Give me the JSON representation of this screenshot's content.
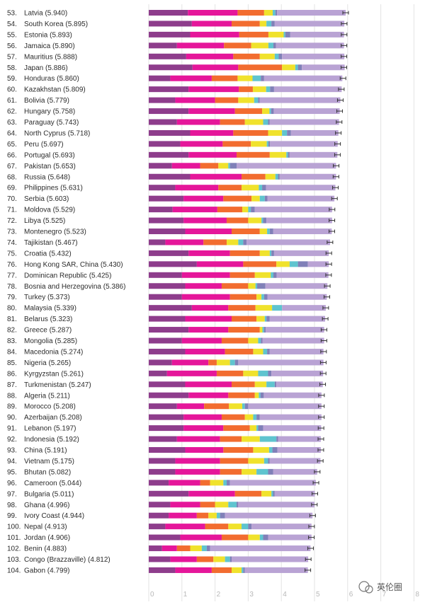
{
  "watermark": "英伦圈",
  "chart_data": {
    "type": "bar",
    "stacked": true,
    "orientation": "horizontal",
    "xlim": [
      0,
      8
    ],
    "x_ticks": [
      0,
      1,
      2,
      3,
      4,
      5,
      6,
      7,
      8
    ],
    "grid": true,
    "error_bars": true,
    "colors": [
      "#8e3d8c",
      "#e5169a",
      "#f26c2f",
      "#f0e22c",
      "#5fc4cf",
      "#8080b8",
      "#b9a3d4"
    ],
    "rows": [
      {
        "rank": "53.",
        "label": "Latvia (5.940)",
        "score": 5.94,
        "segments": [
          1.18,
          1.5,
          0.8,
          0.26,
          0.08,
          0.05,
          2.07
        ]
      },
      {
        "rank": "54.",
        "label": "South Korea (5.895)",
        "score": 5.895,
        "segments": [
          1.3,
          1.2,
          0.85,
          0.2,
          0.15,
          0.1,
          2.1
        ]
      },
      {
        "rank": "55.",
        "label": "Estonia (5.893)",
        "score": 5.893,
        "segments": [
          1.25,
          1.48,
          0.88,
          0.46,
          0.05,
          0.15,
          1.62
        ]
      },
      {
        "rank": "56.",
        "label": "Jamaica (5.890)",
        "score": 5.89,
        "segments": [
          0.85,
          1.42,
          0.82,
          0.52,
          0.15,
          0.08,
          2.05
        ]
      },
      {
        "rank": "57.",
        "label": "Mauritius (5.888)",
        "score": 5.888,
        "segments": [
          1.13,
          1.42,
          0.8,
          0.45,
          0.12,
          0.1,
          1.88
        ]
      },
      {
        "rank": "58.",
        "label": "Japan (5.886)",
        "score": 5.886,
        "segments": [
          1.32,
          1.38,
          1.32,
          0.4,
          0.08,
          0.12,
          1.29
        ]
      },
      {
        "rank": "59.",
        "label": "Honduras (5.860)",
        "score": 5.86,
        "segments": [
          0.65,
          1.25,
          0.78,
          0.45,
          0.25,
          0.1,
          2.36
        ]
      },
      {
        "rank": "60.",
        "label": "Kazakhstan (5.809)",
        "score": 5.809,
        "segments": [
          1.2,
          1.52,
          0.42,
          0.4,
          0.12,
          0.12,
          2.04
        ]
      },
      {
        "rank": "61.",
        "label": "Bolivia (5.779)",
        "score": 5.779,
        "segments": [
          0.8,
          1.2,
          0.7,
          0.48,
          0.12,
          0.05,
          2.43
        ]
      },
      {
        "rank": "62.",
        "label": "Hungary (5.758)",
        "score": 5.758,
        "segments": [
          1.2,
          1.4,
          0.82,
          0.22,
          0.05,
          0.08,
          1.99
        ]
      },
      {
        "rank": "63.",
        "label": "Paraguay (5.743)",
        "score": 5.743,
        "segments": [
          0.85,
          1.3,
          0.75,
          0.55,
          0.15,
          0.05,
          2.09
        ]
      },
      {
        "rank": "64.",
        "label": "North Cyprus (5.718)",
        "score": 5.718,
        "segments": [
          1.25,
          1.3,
          1.05,
          0.42,
          0.15,
          0.12,
          1.43
        ]
      },
      {
        "rank": "65.",
        "label": "Peru (5.697)",
        "score": 5.697,
        "segments": [
          0.95,
          1.28,
          0.85,
          0.48,
          0.05,
          0.05,
          2.04
        ]
      },
      {
        "rank": "66.",
        "label": "Portugal (5.693)",
        "score": 5.693,
        "segments": [
          1.2,
          1.45,
          1.0,
          0.5,
          0.05,
          0.05,
          1.44
        ]
      },
      {
        "rank": "67.",
        "label": "Pakistan (5.653)",
        "score": 5.653,
        "segments": [
          0.7,
          0.85,
          0.55,
          0.3,
          0.05,
          0.2,
          3.0
        ]
      },
      {
        "rank": "68.",
        "label": "Russia (5.648)",
        "score": 5.648,
        "segments": [
          1.25,
          1.55,
          0.72,
          0.3,
          0.08,
          0.05,
          1.7
        ]
      },
      {
        "rank": "69.",
        "label": "Philippines (5.631)",
        "score": 5.631,
        "segments": [
          0.8,
          1.3,
          0.7,
          0.52,
          0.1,
          0.12,
          2.09
        ]
      },
      {
        "rank": "70.",
        "label": "Serbia (5.603)",
        "score": 5.603,
        "segments": [
          1.05,
          1.2,
          0.85,
          0.25,
          0.15,
          0.08,
          2.02
        ]
      },
      {
        "rank": "71.",
        "label": "Moldova (5.529)",
        "score": 5.529,
        "segments": [
          0.72,
          1.35,
          0.75,
          0.18,
          0.08,
          0.12,
          2.33
        ]
      },
      {
        "rank": "72.",
        "label": "Libya (5.525)",
        "score": 5.525,
        "segments": [
          1.05,
          1.3,
          0.65,
          0.4,
          0.05,
          0.1,
          1.98
        ]
      },
      {
        "rank": "73.",
        "label": "Montenegro (5.523)",
        "score": 5.523,
        "segments": [
          1.1,
          1.4,
          0.85,
          0.22,
          0.08,
          0.1,
          1.77
        ]
      },
      {
        "rank": "74.",
        "label": "Tajikistan (5.467)",
        "score": 5.467,
        "segments": [
          0.5,
          1.15,
          0.7,
          0.35,
          0.15,
          0.1,
          2.52
        ]
      },
      {
        "rank": "75.",
        "label": "Croatia (5.432)",
        "score": 5.432,
        "segments": [
          1.2,
          1.25,
          0.9,
          0.3,
          0.05,
          0.08,
          1.65
        ]
      },
      {
        "rank": "76.",
        "label": "Hong Kong SAR, China (5.430)",
        "score": 5.43,
        "segments": [
          1.45,
          1.4,
          1.0,
          0.4,
          0.25,
          0.3,
          0.63
        ]
      },
      {
        "rank": "77.",
        "label": "Dominican Republic (5.425)",
        "score": 5.425,
        "segments": [
          1.0,
          1.45,
          0.75,
          0.48,
          0.08,
          0.1,
          1.56
        ]
      },
      {
        "rank": "78.",
        "label": "Bosnia and Herzegovina (5.386)",
        "score": 5.386,
        "segments": [
          1.1,
          1.1,
          0.8,
          0.22,
          0.05,
          0.25,
          1.87
        ]
      },
      {
        "rank": "79.",
        "label": "Turkey (5.373)",
        "score": 5.373,
        "segments": [
          1.0,
          1.45,
          0.8,
          0.15,
          0.08,
          0.1,
          1.79
        ]
      },
      {
        "rank": "80.",
        "label": "Malaysia (5.339)",
        "score": 5.339,
        "segments": [
          1.3,
          1.1,
          0.82,
          0.5,
          0.3,
          0.0,
          1.32
        ]
      },
      {
        "rank": "81.",
        "label": "Belarus (5.323)",
        "score": 5.323,
        "segments": [
          1.1,
          1.4,
          0.75,
          0.25,
          0.05,
          0.1,
          1.67
        ]
      },
      {
        "rank": "82.",
        "label": "Greece (5.287)",
        "score": 5.287,
        "segments": [
          1.2,
          1.2,
          0.95,
          0.08,
          0.05,
          0.05,
          1.76
        ]
      },
      {
        "rank": "83.",
        "label": "Mongolia (5.285)",
        "score": 5.285,
        "segments": [
          1.0,
          1.2,
          0.8,
          0.3,
          0.08,
          0.05,
          1.86
        ]
      },
      {
        "rank": "84.",
        "label": "Macedonia (5.274)",
        "score": 5.274,
        "segments": [
          1.1,
          1.2,
          0.85,
          0.3,
          0.12,
          0.08,
          1.62
        ]
      },
      {
        "rank": "85.",
        "label": "Nigeria (5.265)",
        "score": 5.265,
        "segments": [
          0.7,
          1.1,
          0.25,
          0.4,
          0.15,
          0.1,
          2.57
        ]
      },
      {
        "rank": "86.",
        "label": "Kyrgyzstan (5.261)",
        "score": 5.261,
        "segments": [
          0.55,
          1.5,
          0.8,
          0.45,
          0.3,
          0.1,
          1.56
        ]
      },
      {
        "rank": "87.",
        "label": "Turkmenistan (5.247)",
        "score": 5.247,
        "segments": [
          1.1,
          1.4,
          0.7,
          0.35,
          0.25,
          0.05,
          1.4
        ]
      },
      {
        "rank": "88.",
        "label": "Algeria (5.211)",
        "score": 5.211,
        "segments": [
          1.2,
          1.2,
          0.8,
          0.12,
          0.05,
          0.1,
          1.74
        ]
      },
      {
        "rank": "89.",
        "label": "Morocco (5.208)",
        "score": 5.208,
        "segments": [
          0.85,
          0.82,
          0.75,
          0.4,
          0.08,
          0.1,
          2.21
        ]
      },
      {
        "rank": "90.",
        "label": "Azerbaijan (5.208)",
        "score": 5.208,
        "segments": [
          1.05,
          1.15,
          0.7,
          0.25,
          0.1,
          0.1,
          1.86
        ]
      },
      {
        "rank": "91.",
        "label": "Lebanon (5.197)",
        "score": 5.197,
        "segments": [
          1.05,
          1.2,
          0.8,
          0.2,
          0.05,
          0.15,
          1.75
        ]
      },
      {
        "rank": "92.",
        "label": "Indonesia (5.192)",
        "score": 5.192,
        "segments": [
          0.85,
          1.3,
          0.65,
          0.55,
          0.5,
          0.05,
          1.29
        ]
      },
      {
        "rank": "93.",
        "label": "China (5.191)",
        "score": 5.191,
        "segments": [
          1.1,
          1.15,
          0.9,
          0.48,
          0.1,
          0.15,
          1.31
        ]
      },
      {
        "rank": "94.",
        "label": "Vietnam (5.175)",
        "score": 5.175,
        "segments": [
          0.8,
          1.35,
          0.85,
          0.48,
          0.12,
          0.05,
          1.53
        ]
      },
      {
        "rank": "95.",
        "label": "Bhutan (5.082)",
        "score": 5.082,
        "segments": [
          0.8,
          1.35,
          0.65,
          0.45,
          0.35,
          0.15,
          1.33
        ]
      },
      {
        "rank": "96.",
        "label": "Cameroon (5.044)",
        "score": 5.044,
        "segments": [
          0.6,
          0.95,
          0.3,
          0.4,
          0.1,
          0.1,
          2.59
        ]
      },
      {
        "rank": "97.",
        "label": "Bulgaria (5.011)",
        "score": 5.011,
        "segments": [
          1.2,
          1.4,
          0.8,
          0.3,
          0.05,
          0.05,
          1.21
        ]
      },
      {
        "rank": "98.",
        "label": "Ghana (4.996)",
        "score": 4.996,
        "segments": [
          0.65,
          0.9,
          0.45,
          0.4,
          0.25,
          0.05,
          2.3
        ]
      },
      {
        "rank": "99.",
        "label": "Ivory Coast (4.944)",
        "score": 4.944,
        "segments": [
          0.6,
          0.85,
          0.35,
          0.25,
          0.1,
          0.15,
          2.64
        ]
      },
      {
        "rank": "100.",
        "label": "Nepal (4.913)",
        "score": 4.913,
        "segments": [
          0.5,
          1.2,
          0.7,
          0.4,
          0.2,
          0.1,
          1.81
        ]
      },
      {
        "rank": "101.",
        "label": "Jordan (4.906)",
        "score": 4.906,
        "segments": [
          0.95,
          1.25,
          0.8,
          0.35,
          0.1,
          0.15,
          1.31
        ]
      },
      {
        "rank": "102.",
        "label": "Benin (4.883)",
        "score": 4.883,
        "segments": [
          0.4,
          0.45,
          0.4,
          0.35,
          0.15,
          0.1,
          3.03
        ]
      },
      {
        "rank": "103.",
        "label": "Congo (Brazzaville) (4.812)",
        "score": 4.812,
        "segments": [
          0.65,
          0.8,
          0.5,
          0.35,
          0.15,
          0.05,
          2.31
        ]
      },
      {
        "rank": "104.",
        "label": "Gabon (4.799)",
        "score": 4.799,
        "segments": [
          0.8,
          1.1,
          0.6,
          0.3,
          0.05,
          0.05,
          1.9
        ]
      }
    ]
  }
}
